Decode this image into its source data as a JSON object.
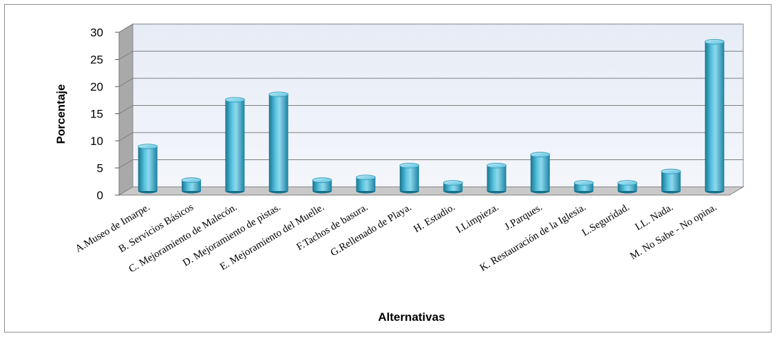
{
  "chart_data": {
    "type": "bar",
    "xlabel": "Alternativas",
    "ylabel": "Porcentaje",
    "ylim": [
      0,
      30
    ],
    "yticks": [
      0,
      5,
      10,
      15,
      20,
      25,
      30
    ],
    "grid": true,
    "legend": "none",
    "categories": [
      "A.Museo de Imarpe.",
      "B. Servicios Básicos",
      "C. Mejoramiento de Malecón.",
      "D. Mejoramiento de pistas.",
      "E. Mejoramiento del Muelle.",
      "F.Tachos de basura.",
      "G.Rellenado de Playa.",
      "H. Estadio.",
      "I.Limpieza.",
      "J.Parques.",
      "K. Restauración de la Iglesia.",
      "L.Seguridad.",
      "LL. Nada.",
      "M. No Sabe - No opina."
    ],
    "values": [
      8.2,
      2.0,
      16.8,
      17.8,
      2.0,
      2.5,
      4.7,
      1.5,
      4.7,
      6.7,
      1.5,
      1.5,
      3.6,
      27.5
    ]
  },
  "colors": {
    "bar": "#2ea3c4",
    "bar_light": "#9fdcee",
    "bar_dark": "#15708c",
    "wall": "#e9eef7",
    "grid": "#8a8a8a"
  }
}
